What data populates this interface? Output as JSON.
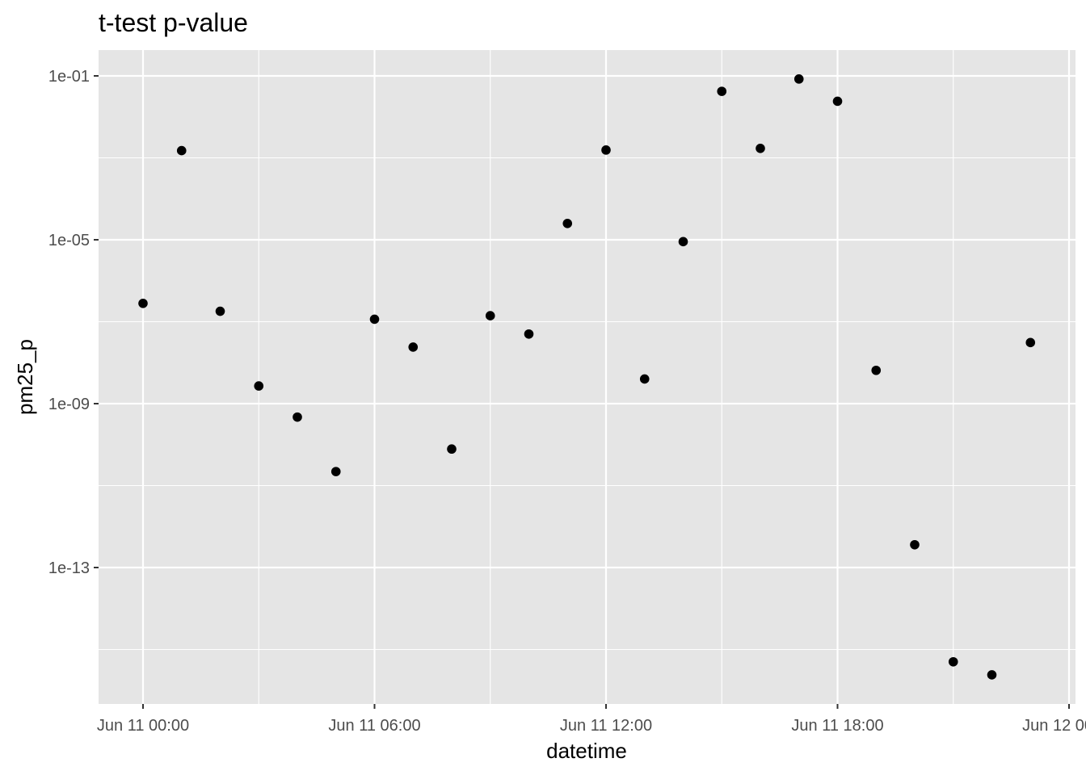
{
  "chart_data": {
    "type": "scatter",
    "title": "t-test p-value",
    "xlabel": "datetime",
    "ylabel": "pm25_p",
    "x_scale": "time",
    "y_scale": "log10",
    "xlim": [
      "2023-06-10T22:50",
      "2023-06-12T00:00"
    ],
    "ylim": [
      1e-17,
      0.2
    ],
    "x_ticks": [
      {
        "value": "2023-06-11T00:00",
        "label": "Jun 11 00:00"
      },
      {
        "value": "2023-06-11T06:00",
        "label": "Jun 11 06:00"
      },
      {
        "value": "2023-06-11T12:00",
        "label": "Jun 11 12:00"
      },
      {
        "value": "2023-06-11T18:00",
        "label": "Jun 11 18:00"
      },
      {
        "value": "2023-06-12T00:00",
        "label": "Jun 12 00:00"
      }
    ],
    "y_ticks": [
      {
        "value": 1e-13,
        "label": "1e-13"
      },
      {
        "value": 1e-09,
        "label": "1e-09"
      },
      {
        "value": 1e-05,
        "label": "1e-05"
      },
      {
        "value": 0.1,
        "label": "1e-01"
      }
    ],
    "grid": true,
    "colors": {
      "panel": "#e5e5e5",
      "grid": "#ffffff",
      "point": "#000000"
    },
    "points": [
      {
        "x": "2023-06-11T00:00",
        "y": 2.8e-07
      },
      {
        "x": "2023-06-11T01:00",
        "y": 0.0015
      },
      {
        "x": "2023-06-11T02:00",
        "y": 1.8e-07
      },
      {
        "x": "2023-06-11T03:00",
        "y": 2.7e-09
      },
      {
        "x": "2023-06-11T04:00",
        "y": 4.7e-10
      },
      {
        "x": "2023-06-11T05:00",
        "y": 2.2e-11
      },
      {
        "x": "2023-06-11T06:00",
        "y": 1.15e-07
      },
      {
        "x": "2023-06-11T07:00",
        "y": 2.4e-08
      },
      {
        "x": "2023-06-11T08:00",
        "y": 7.8e-11
      },
      {
        "x": "2023-06-11T09:00",
        "y": 1.4e-07
      },
      {
        "x": "2023-06-11T10:00",
        "y": 5e-08
      },
      {
        "x": "2023-06-11T11:00",
        "y": 2.5e-05
      },
      {
        "x": "2023-06-11T12:00",
        "y": 0.00155
      },
      {
        "x": "2023-06-11T13:00",
        "y": 4e-09
      },
      {
        "x": "2023-06-11T14:00",
        "y": 9e-06
      },
      {
        "x": "2023-06-11T15:00",
        "y": 0.042
      },
      {
        "x": "2023-06-11T16:00",
        "y": 0.0017
      },
      {
        "x": "2023-06-11T17:00",
        "y": 0.084
      },
      {
        "x": "2023-06-11T18:00",
        "y": 0.024
      },
      {
        "x": "2023-06-11T19:00",
        "y": 6.5e-09
      },
      {
        "x": "2023-06-11T20:00",
        "y": 3.6e-13
      },
      {
        "x": "2023-06-11T21:00",
        "y": 5e-16
      },
      {
        "x": "2023-06-11T22:00",
        "y": 2.4e-16
      },
      {
        "x": "2023-06-11T23:00",
        "y": 3.1e-08
      }
    ]
  }
}
